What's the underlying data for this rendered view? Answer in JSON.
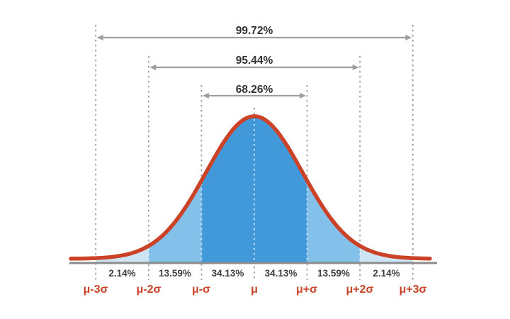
{
  "chart_data": {
    "type": "area",
    "curve": "normal-distribution-bell",
    "x_tick_labels": [
      "μ-3σ",
      "μ-2σ",
      "μ-σ",
      "μ",
      "μ+σ",
      "μ+2σ",
      "μ+3σ"
    ],
    "x_ticks_sigma": [
      -3,
      -2,
      -1,
      0,
      1,
      2,
      3
    ],
    "region_percent_labels": [
      "2.14%",
      "13.59%",
      "34.13%",
      "34.13%",
      "13.59%",
      "2.14%"
    ],
    "region_values": [
      2.14,
      13.59,
      34.13,
      34.13,
      13.59,
      2.14
    ],
    "interval_annotations": [
      {
        "label": "99.72%",
        "value": 99.72,
        "from": "μ-3σ",
        "to": "μ+3σ"
      },
      {
        "label": "95.44%",
        "value": 95.44,
        "from": "μ-2σ",
        "to": "μ+2σ"
      },
      {
        "label": "68.26%",
        "value": 68.26,
        "from": "μ-σ",
        "to": "μ+σ"
      }
    ],
    "grid": "dashed vertical line at each sigma boundary",
    "legend": "none",
    "colors": {
      "curve_stroke": "#cc4227",
      "fill_1sigma": "#4199d9",
      "fill_2sigma": "#83c0ea",
      "fill_3sigma": "#cde4f5",
      "sigma_label": "#c9452a",
      "percent_label": "#3f3f3f",
      "interval_label": "#333333",
      "arrow": "#9e9e9e",
      "gridline_outer": "#9b9b9b",
      "gridline_inner": "#ffffff",
      "baseline": "#8c8c8c",
      "background": "#ffffff"
    }
  }
}
